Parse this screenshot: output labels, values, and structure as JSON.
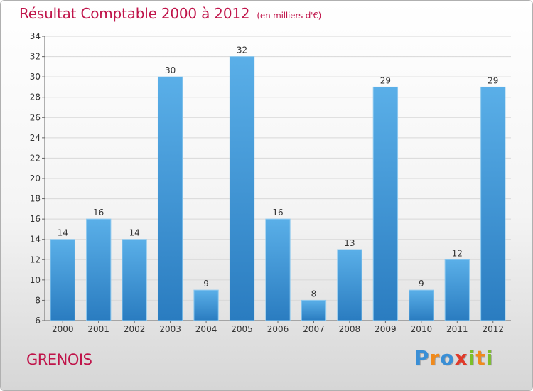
{
  "title": "Résultat Comptable 2000 à 2012",
  "subtitle": "(en milliers d'€)",
  "place": "GRENOIS",
  "logo": {
    "text": "Proxiti",
    "letters": [
      {
        "ch": "P",
        "color": "#3a8fd6"
      },
      {
        "ch": "r",
        "color": "#f08a1c"
      },
      {
        "ch": "o",
        "color": "#3a8fd6"
      },
      {
        "ch": "x",
        "color": "#e03a2a"
      },
      {
        "ch": "i",
        "color": "#7cbf2a"
      },
      {
        "ch": "t",
        "color": "#f08a1c"
      },
      {
        "ch": "i",
        "color": "#7cbf2a"
      }
    ]
  },
  "colors": {
    "title": "#c0144a",
    "bar_top": "#5aafe8",
    "bar_bottom": "#2a7cc0",
    "grid": "#d8d8d8",
    "axis": "#666666"
  },
  "chart_data": {
    "type": "bar",
    "title": "Résultat Comptable 2000 à 2012",
    "subtitle": "(en milliers d'€)",
    "xlabel": "",
    "ylabel": "",
    "categories": [
      "2000",
      "2001",
      "2002",
      "2003",
      "2004",
      "2005",
      "2006",
      "2007",
      "2008",
      "2009",
      "2010",
      "2011",
      "2012"
    ],
    "values": [
      14,
      16,
      14,
      30,
      9,
      32,
      16,
      8,
      13,
      29,
      9,
      12,
      29
    ],
    "ylim": [
      6,
      34
    ],
    "yticks": [
      6,
      8,
      10,
      12,
      14,
      16,
      18,
      20,
      22,
      24,
      26,
      28,
      30,
      32,
      34
    ],
    "grid": true,
    "data_labels": true
  }
}
